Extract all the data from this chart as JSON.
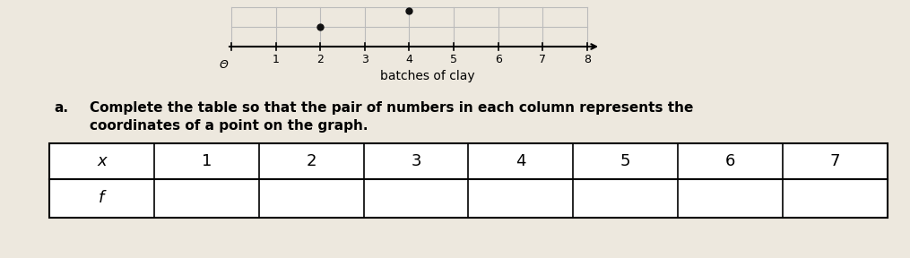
{
  "axis_label": "batches of clay",
  "axis_numbers": [
    "0",
    "1",
    "2",
    "3",
    "4",
    "5",
    "6",
    "7",
    "8"
  ],
  "instruction_prefix": "a.",
  "instruction_line1": "Complete the table so that the pair of numbers in each column represents the",
  "instruction_line2": "coordinates of a point on the graph.",
  "table_row1_label": "x",
  "table_row2_label": "f",
  "table_x_values": [
    "1",
    "2",
    "3",
    "4",
    "5",
    "6",
    "7"
  ],
  "background_color": "#ede8de",
  "text_color": "#000000",
  "grid_color": "#bbbbbb",
  "dot_color": "#111111"
}
